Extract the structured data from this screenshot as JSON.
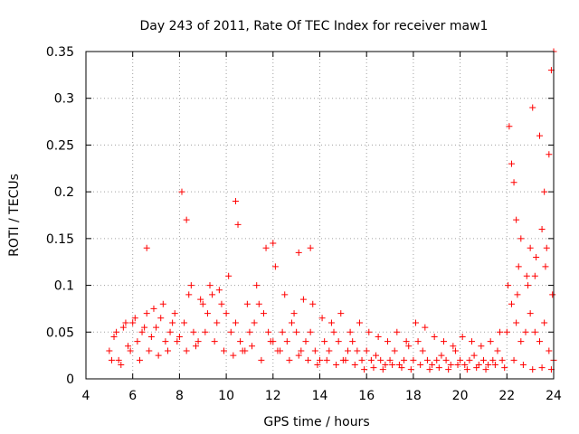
{
  "chart_data": {
    "type": "scatter",
    "title": "Day 243 of 2011, Rate Of TEC Index for receiver maw1",
    "xlabel": "GPS time / hours",
    "ylabel": "ROTI / TECUs",
    "xlim": [
      4,
      24
    ],
    "ylim": [
      0,
      0.35
    ],
    "x_ticks": [
      4,
      6,
      8,
      10,
      12,
      14,
      16,
      18,
      20,
      22,
      24
    ],
    "x_tick_labels": [
      "4",
      "6",
      "8",
      "10",
      "12",
      "14",
      "16",
      "18",
      "20",
      "22",
      "24"
    ],
    "y_ticks": [
      0,
      0.05,
      0.1,
      0.15,
      0.2,
      0.25,
      0.3,
      0.35
    ],
    "y_tick_labels": [
      "0",
      "0.05",
      "0.1",
      "0.15",
      "0.2",
      "0.25",
      "0.3",
      "0.35"
    ],
    "grid": true,
    "marker": "+",
    "color": "#ff0000",
    "series": [
      {
        "name": "maw1",
        "x": [
          5.0,
          5.2,
          5.4,
          5.6,
          5.8,
          6.0,
          6.2,
          6.4,
          6.6,
          6.8,
          7.0,
          7.2,
          7.4,
          7.6,
          7.8,
          8.0,
          8.2,
          8.4,
          8.6,
          8.8,
          9.0,
          9.2,
          9.4,
          9.6,
          9.8,
          10.0,
          10.2,
          10.4,
          10.6,
          10.8,
          11.0,
          11.2,
          11.4,
          11.6,
          11.8,
          12.0,
          12.2,
          12.4,
          12.6,
          12.8,
          13.0,
          13.2,
          13.4,
          13.6,
          13.8,
          14.0,
          14.2,
          14.4,
          14.6,
          14.8,
          15.0,
          15.2,
          15.4,
          15.6,
          15.8,
          16.0,
          16.2,
          16.4,
          16.6,
          16.8,
          17.0,
          17.2,
          17.4,
          17.6,
          17.8,
          18.0,
          18.2,
          18.4,
          18.6,
          18.8,
          19.0,
          19.2,
          19.4,
          19.6,
          19.8,
          20.0,
          20.2,
          20.4,
          20.6,
          20.8,
          21.0,
          21.2,
          21.4,
          21.6,
          21.8,
          22.0,
          22.2,
          22.4,
          22.6,
          22.8,
          23.0,
          23.2,
          23.4,
          23.6,
          23.8,
          24.0,
          5.1,
          5.5,
          5.9,
          6.3,
          6.7,
          7.1,
          7.5,
          7.9,
          8.3,
          8.7,
          9.1,
          9.5,
          9.9,
          10.3,
          10.7,
          11.1,
          11.5,
          11.9,
          12.3,
          12.7,
          13.1,
          13.5,
          13.9,
          14.3,
          14.7,
          15.1,
          15.5,
          15.9,
          16.3,
          16.7,
          17.1,
          17.5,
          17.9,
          18.3,
          18.7,
          19.1,
          19.5,
          19.9,
          20.3,
          20.7,
          21.1,
          21.5,
          21.9,
          22.3,
          22.7,
          23.1,
          23.5,
          23.9,
          6.6,
          8.1,
          8.3,
          10.4,
          10.5,
          11.7,
          12.0,
          13.1,
          13.6,
          22.1,
          22.2,
          22.3,
          22.5,
          23.0,
          23.1,
          23.4,
          23.6,
          23.8,
          23.9,
          24.0,
          22.4,
          22.6,
          23.2,
          23.5,
          23.7,
          22.9,
          5.3,
          5.7,
          6.1,
          6.5,
          6.9,
          7.3,
          7.7,
          8.5,
          8.9,
          9.3,
          9.7,
          10.1,
          10.9,
          11.3,
          12.1,
          12.5,
          12.9,
          13.3,
          13.7,
          14.1,
          14.5,
          14.9,
          15.3,
          15.7,
          16.1,
          16.5,
          16.9,
          17.3,
          17.7,
          18.1,
          18.5,
          18.9,
          19.3,
          19.7,
          20.1,
          20.5,
          20.9,
          21.3,
          21.7,
          22.05,
          22.45,
          22.85,
          23.25,
          23.65,
          23.95
        ],
        "y": [
          0.03,
          0.045,
          0.02,
          0.055,
          0.035,
          0.06,
          0.04,
          0.05,
          0.07,
          0.045,
          0.055,
          0.065,
          0.04,
          0.05,
          0.07,
          0.045,
          0.06,
          0.09,
          0.05,
          0.04,
          0.08,
          0.07,
          0.09,
          0.06,
          0.08,
          0.07,
          0.05,
          0.06,
          0.04,
          0.03,
          0.05,
          0.06,
          0.08,
          0.07,
          0.05,
          0.04,
          0.03,
          0.05,
          0.04,
          0.06,
          0.05,
          0.03,
          0.04,
          0.05,
          0.03,
          0.02,
          0.04,
          0.03,
          0.05,
          0.04,
          0.02,
          0.03,
          0.04,
          0.03,
          0.02,
          0.03,
          0.02,
          0.025,
          0.02,
          0.015,
          0.02,
          0.03,
          0.015,
          0.02,
          0.035,
          0.02,
          0.04,
          0.03,
          0.02,
          0.015,
          0.02,
          0.025,
          0.02,
          0.015,
          0.03,
          0.02,
          0.015,
          0.02,
          0.025,
          0.015,
          0.02,
          0.015,
          0.02,
          0.03,
          0.02,
          0.05,
          0.08,
          0.06,
          0.04,
          0.05,
          0.07,
          0.05,
          0.04,
          0.06,
          0.03,
          0.02,
          0.02,
          0.015,
          0.03,
          0.02,
          0.03,
          0.025,
          0.03,
          0.04,
          0.03,
          0.035,
          0.05,
          0.04,
          0.03,
          0.025,
          0.03,
          0.035,
          0.02,
          0.04,
          0.03,
          0.02,
          0.025,
          0.02,
          0.015,
          0.02,
          0.015,
          0.02,
          0.015,
          0.01,
          0.012,
          0.01,
          0.015,
          0.012,
          0.01,
          0.015,
          0.01,
          0.012,
          0.01,
          0.015,
          0.01,
          0.012,
          0.01,
          0.015,
          0.012,
          0.02,
          0.015,
          0.01,
          0.012,
          0.01,
          0.14,
          0.2,
          0.17,
          0.19,
          0.165,
          0.14,
          0.145,
          0.135,
          0.14,
          0.27,
          0.23,
          0.21,
          0.12,
          0.14,
          0.29,
          0.26,
          0.2,
          0.24,
          0.33,
          0.35,
          0.17,
          0.15,
          0.11,
          0.16,
          0.14,
          0.1,
          0.05,
          0.06,
          0.065,
          0.055,
          0.075,
          0.08,
          0.06,
          0.1,
          0.085,
          0.1,
          0.095,
          0.11,
          0.08,
          0.1,
          0.12,
          0.09,
          0.07,
          0.085,
          0.08,
          0.065,
          0.06,
          0.07,
          0.05,
          0.06,
          0.05,
          0.045,
          0.04,
          0.05,
          0.04,
          0.06,
          0.055,
          0.045,
          0.04,
          0.035,
          0.045,
          0.04,
          0.035,
          0.04,
          0.05,
          0.1,
          0.09,
          0.11,
          0.13,
          0.12,
          0.09
        ]
      }
    ]
  }
}
